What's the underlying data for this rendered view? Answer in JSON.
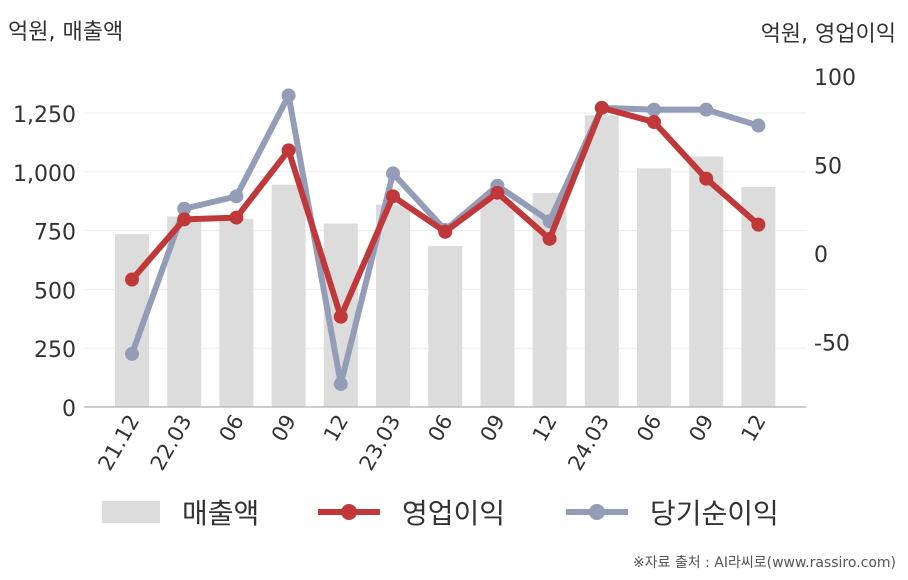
{
  "units": {
    "left": "억원, 매출액",
    "right": "억원, 영업이익"
  },
  "source": "※자료 출처 : AI라씨로(www.rassiro.com)",
  "colors": {
    "revenue": "#dcdcdc",
    "operating_profit": "#c0383a",
    "net_income": "#939db8"
  },
  "chart_data": {
    "type": "bar",
    "categories": [
      "21.12",
      "22.03",
      "06",
      "09",
      "12",
      "23.03",
      "06",
      "09",
      "12",
      "24.03",
      "06",
      "09",
      "12"
    ],
    "series": [
      {
        "name": "매출액",
        "type": "bar",
        "axis": "left",
        "values": [
          735,
          810,
          800,
          945,
          780,
          860,
          685,
          880,
          910,
          1240,
          1015,
          1065,
          935
        ]
      },
      {
        "name": "영업이익",
        "type": "line",
        "axis": "right",
        "values": [
          -15,
          19,
          20,
          58,
          -36,
          32,
          12,
          34,
          8,
          82,
          74,
          42,
          16
        ]
      },
      {
        "name": "당기순이익",
        "type": "line",
        "axis": "right",
        "values": [
          -57,
          25,
          32,
          89,
          -74,
          45,
          13,
          38,
          18,
          82,
          81,
          81,
          72
        ]
      }
    ],
    "left_axis": {
      "ylim": [
        0,
        1400
      ],
      "ticks": [
        0,
        250,
        500,
        750,
        1000,
        1250
      ],
      "tick_labels": [
        "0",
        "250",
        "500",
        "750",
        "1,000",
        "1,250"
      ]
    },
    "right_axis": {
      "ylim": [
        -85,
        100
      ],
      "ticks": [
        -50,
        0,
        50,
        100
      ],
      "tick_labels": [
        "-50",
        "0",
        "50",
        "100"
      ]
    },
    "grid": true,
    "legend": "bottom"
  }
}
